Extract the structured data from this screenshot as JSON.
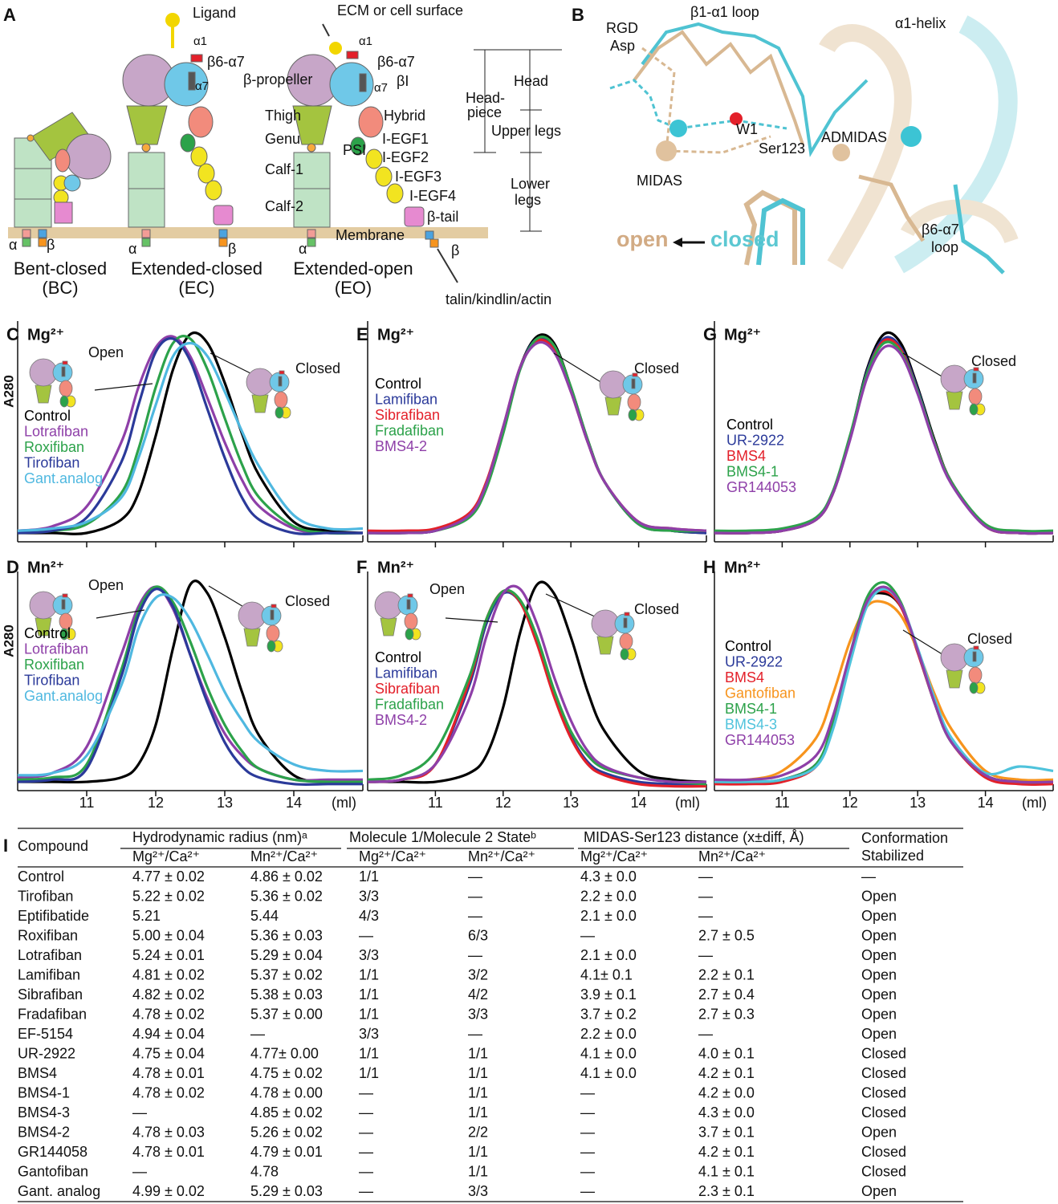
{
  "panel_a": {
    "label": "A",
    "texts": [
      "Ligand",
      "ECM or cell surface",
      "α1",
      "β6-α7",
      "α7",
      "β-propeller",
      "Thigh",
      "Genu",
      "Calf-1",
      "Calf-2",
      "α1",
      "β6-α7",
      "βI",
      "α7",
      "Hybrid",
      "PSI",
      "I-EGF1",
      "I-EGF2",
      "I-EGF3",
      "I-EGF4",
      "β-tail",
      "Membrane",
      "Head",
      "Head-",
      "piece",
      "Upper legs",
      "Lower",
      "legs",
      "α",
      "β",
      "α",
      "β",
      "α",
      "β",
      "Bent-closed",
      "(BC)",
      "Extended-closed",
      "(EC)",
      "Extended-open",
      "(EO)",
      "talin/kindlin/actin"
    ]
  },
  "panel_b": {
    "label": "B",
    "texts": [
      "RGD",
      "Asp",
      "β1-α1 loop",
      "α1-helix",
      "W1",
      "Ser123",
      "ADMIDAS",
      "MIDAS",
      "open",
      "closed",
      "β6-α7",
      "loop"
    ]
  },
  "chart_data": [
    {
      "type": "line",
      "panel": "C",
      "title": "Mg²⁺",
      "ylabel": "A280",
      "annotations": [
        "Open",
        "Closed"
      ],
      "x": [
        10,
        10.5,
        11,
        11.5,
        11.75,
        12,
        12.25,
        12.5,
        12.75,
        13,
        13.25,
        13.5,
        14,
        14.5,
        15
      ],
      "xlim": [
        10,
        15
      ],
      "ylim": [
        0,
        100
      ],
      "xticks": [
        11,
        12,
        13,
        14
      ],
      "series": [
        {
          "name": "Control",
          "color": "#000000",
          "values": [
            4,
            4,
            4,
            10,
            22,
            48,
            78,
            94,
            90,
            72,
            49,
            30,
            9,
            5,
            4
          ]
        },
        {
          "name": "Lotrafiban",
          "color": "#8e3fa8",
          "values": [
            5,
            7,
            16,
            45,
            70,
            88,
            93,
            84,
            65,
            45,
            28,
            16,
            6,
            4,
            4
          ]
        },
        {
          "name": "Roxifiban",
          "color": "#2ca24a",
          "values": [
            4,
            5,
            8,
            22,
            42,
            70,
            90,
            92,
            78,
            56,
            35,
            20,
            7,
            4,
            4
          ]
        },
        {
          "name": "Tirofiban",
          "color": "#2b3a9a",
          "values": [
            4,
            5,
            11,
            36,
            62,
            86,
            92,
            82,
            60,
            38,
            20,
            10,
            4,
            4,
            4
          ]
        },
        {
          "name": "Gant.analog",
          "color": "#4fb8e0",
          "values": [
            5,
            6,
            9,
            20,
            38,
            62,
            84,
            90,
            84,
            68,
            50,
            34,
            12,
            6,
            6
          ]
        }
      ]
    },
    {
      "type": "line",
      "panel": "D",
      "title": "Mn²⁺",
      "ylabel": "A280",
      "xlabel": "(ml)",
      "annotations": [
        "Open",
        "Closed"
      ],
      "x": [
        10,
        10.5,
        11,
        11.5,
        11.75,
        12,
        12.25,
        12.5,
        12.75,
        13,
        13.25,
        13.5,
        14,
        14.5,
        15
      ],
      "xlim": [
        10,
        15
      ],
      "ylim": [
        0,
        100
      ],
      "xticks": [
        11,
        12,
        13,
        14
      ],
      "series": [
        {
          "name": "Control",
          "color": "#000000",
          "values": [
            4,
            4,
            4,
            6,
            12,
            30,
            65,
            94,
            90,
            70,
            45,
            25,
            7,
            4,
            4
          ]
        },
        {
          "name": "Lotrafiban",
          "color": "#8e3fa8",
          "values": [
            6,
            8,
            20,
            62,
            84,
            93,
            83,
            62,
            42,
            26,
            16,
            10,
            5,
            5,
            5
          ]
        },
        {
          "name": "Roxifiban",
          "color": "#2ca24a",
          "values": [
            5,
            6,
            12,
            55,
            82,
            93,
            86,
            68,
            47,
            30,
            18,
            10,
            5,
            4,
            4
          ]
        },
        {
          "name": "Tirofiban",
          "color": "#2b3a9a",
          "values": [
            4,
            5,
            10,
            52,
            80,
            92,
            84,
            62,
            40,
            22,
            11,
            6,
            3,
            3,
            3
          ]
        },
        {
          "name": "Gant.analog",
          "color": "#4fb8e0",
          "values": [
            7,
            8,
            16,
            48,
            74,
            88,
            88,
            78,
            62,
            45,
            32,
            22,
            12,
            9,
            9
          ]
        }
      ]
    },
    {
      "type": "line",
      "panel": "E",
      "title": "Mg²⁺",
      "annotations": [
        "Closed"
      ],
      "x": [
        10,
        10.5,
        11,
        11.5,
        11.75,
        12,
        12.25,
        12.5,
        12.75,
        13,
        13.25,
        13.5,
        14,
        14.5,
        15
      ],
      "xlim": [
        10,
        15
      ],
      "ylim": [
        0,
        100
      ],
      "xticks": [
        11,
        12,
        13,
        14
      ],
      "series": [
        {
          "name": "Control",
          "color": "#000000",
          "values": [
            4,
            4,
            5,
            12,
            25,
            50,
            79,
            93,
            90,
            70,
            46,
            27,
            8,
            5,
            4
          ]
        },
        {
          "name": "Lamifiban",
          "color": "#2b3a9a",
          "values": [
            4,
            4,
            5,
            12,
            25,
            51,
            79,
            92,
            88,
            69,
            45,
            27,
            8,
            5,
            4
          ]
        },
        {
          "name": "Sibrafiban",
          "color": "#e3202a",
          "values": [
            5,
            5,
            6,
            13,
            27,
            52,
            79,
            91,
            87,
            68,
            45,
            27,
            9,
            6,
            5
          ]
        },
        {
          "name": "Fradafiban",
          "color": "#2ca24a",
          "values": [
            4,
            4,
            5,
            11,
            24,
            49,
            78,
            92,
            89,
            70,
            46,
            27,
            8,
            5,
            5
          ]
        },
        {
          "name": "BMS4-2",
          "color": "#8e3fa8",
          "values": [
            4,
            4,
            5,
            12,
            26,
            52,
            79,
            90,
            86,
            68,
            45,
            27,
            9,
            6,
            5
          ]
        }
      ]
    },
    {
      "type": "line",
      "panel": "F",
      "title": "Mn²⁺",
      "xlabel": "(ml)",
      "annotations": [
        "Open",
        "Closed"
      ],
      "x": [
        10,
        10.5,
        11,
        11.5,
        11.75,
        12,
        12.25,
        12.5,
        12.75,
        13,
        13.25,
        13.5,
        14,
        14.5,
        15
      ],
      "xlim": [
        10,
        15
      ],
      "ylim": [
        0,
        100
      ],
      "xticks": [
        11,
        12,
        13,
        14
      ],
      "series": [
        {
          "name": "Control",
          "color": "#000000",
          "values": [
            4,
            4,
            4,
            8,
            16,
            38,
            72,
            94,
            90,
            70,
            45,
            27,
            9,
            5,
            4
          ]
        },
        {
          "name": "Lamifiban",
          "color": "#2b3a9a",
          "values": [
            4,
            5,
            12,
            48,
            76,
            90,
            86,
            68,
            44,
            25,
            13,
            8,
            4,
            3,
            3
          ]
        },
        {
          "name": "Sibrafiban",
          "color": "#e3202a",
          "values": [
            4,
            5,
            12,
            50,
            78,
            91,
            86,
            67,
            43,
            24,
            12,
            7,
            3,
            2,
            2
          ]
        },
        {
          "name": "Fradafiban",
          "color": "#2ca24a",
          "values": [
            5,
            7,
            18,
            52,
            78,
            91,
            87,
            70,
            46,
            27,
            16,
            10,
            6,
            4,
            3
          ]
        },
        {
          "name": "BMS4-2",
          "color": "#8e3fa8",
          "values": [
            4,
            5,
            12,
            42,
            70,
            90,
            92,
            76,
            52,
            32,
            18,
            11,
            6,
            4,
            4
          ]
        }
      ]
    },
    {
      "type": "line",
      "panel": "G",
      "title": "Mg²⁺",
      "annotations": [
        "Closed"
      ],
      "x": [
        10,
        10.5,
        11,
        11.5,
        11.75,
        12,
        12.25,
        12.5,
        12.75,
        13,
        13.25,
        13.5,
        14,
        14.5,
        15
      ],
      "xlim": [
        10,
        15
      ],
      "ylim": [
        0,
        100
      ],
      "xticks": [
        11,
        12,
        13,
        14
      ],
      "series": [
        {
          "name": "Control",
          "color": "#000000",
          "values": [
            4,
            4,
            5,
            10,
            22,
            47,
            78,
            94,
            90,
            70,
            46,
            27,
            7,
            4,
            4
          ]
        },
        {
          "name": "UR-2922",
          "color": "#2b3a9a",
          "values": [
            4,
            4,
            5,
            10,
            22,
            47,
            77,
            92,
            88,
            69,
            45,
            27,
            7,
            4,
            4
          ]
        },
        {
          "name": "BMS4",
          "color": "#e3202a",
          "values": [
            4,
            4,
            5,
            10,
            22,
            47,
            76,
            91,
            87,
            68,
            45,
            27,
            7,
            4,
            4
          ]
        },
        {
          "name": "BMS4-1",
          "color": "#2ca24a",
          "values": [
            5,
            5,
            6,
            11,
            23,
            48,
            76,
            90,
            86,
            68,
            45,
            27,
            8,
            5,
            5
          ]
        },
        {
          "name": "GR144053",
          "color": "#8e3fa8",
          "values": [
            4,
            4,
            5,
            10,
            22,
            46,
            74,
            88,
            85,
            67,
            44,
            26,
            7,
            4,
            4
          ]
        }
      ]
    },
    {
      "type": "line",
      "panel": "H",
      "title": "Mn²⁺",
      "xlabel": "(ml)",
      "annotations": [
        "Closed"
      ],
      "x": [
        10,
        10.5,
        11,
        11.5,
        11.75,
        12,
        12.25,
        12.5,
        12.75,
        13,
        13.25,
        13.5,
        14,
        14.5,
        15
      ],
      "xlim": [
        10,
        15
      ],
      "ylim": [
        0,
        100
      ],
      "xticks": [
        11,
        12,
        13,
        14
      ],
      "series": [
        {
          "name": "Control",
          "color": "#000000",
          "values": [
            4,
            4,
            5,
            12,
            30,
            60,
            86,
            90,
            84,
            64,
            40,
            22,
            7,
            4,
            4
          ]
        },
        {
          "name": "UR-2922",
          "color": "#2b3a9a",
          "values": [
            4,
            4,
            5,
            12,
            30,
            60,
            86,
            92,
            85,
            64,
            40,
            22,
            7,
            4,
            4
          ]
        },
        {
          "name": "BMS4",
          "color": "#e3202a",
          "values": [
            3,
            3,
            4,
            11,
            29,
            60,
            86,
            91,
            84,
            63,
            40,
            22,
            6,
            3,
            3
          ]
        },
        {
          "name": "Gantofiban",
          "color": "#f7941d",
          "values": [
            5,
            5,
            9,
            24,
            44,
            68,
            84,
            86,
            80,
            64,
            44,
            28,
            9,
            5,
            5
          ]
        },
        {
          "name": "BMS4-1",
          "color": "#2ca24a",
          "values": [
            4,
            4,
            5,
            12,
            31,
            62,
            88,
            95,
            86,
            64,
            40,
            22,
            7,
            4,
            4
          ]
        },
        {
          "name": "BMS4-3",
          "color": "#4fc3dc",
          "values": [
            4,
            4,
            5,
            11,
            28,
            58,
            84,
            92,
            85,
            65,
            42,
            24,
            8,
            11,
            9
          ]
        },
        {
          "name": "GR144053",
          "color": "#8e3fa8",
          "values": [
            5,
            5,
            7,
            16,
            34,
            62,
            86,
            93,
            85,
            64,
            40,
            22,
            7,
            4,
            4
          ]
        }
      ]
    }
  ],
  "table": {
    "label": "I",
    "compound": "Compound",
    "groups": [
      "Hydrodynamic radius (nm)ᵃ",
      "Molecule 1/Molecule 2 Stateᵇ",
      "MIDAS-Ser123 distance (x±diff, Å)"
    ],
    "subheaders": [
      "Mg²⁺/Ca²⁺",
      "Mn²⁺/Ca²⁺",
      "Mg²⁺/Ca²⁺",
      "Mn²⁺/Ca²⁺",
      "Mg²⁺/Ca²⁺",
      "Mn²⁺/Ca²⁺"
    ],
    "last": [
      "Conformation",
      "Stabilized"
    ],
    "rows": [
      [
        "Control",
        "4.77 ± 0.02",
        "4.86 ± 0.02",
        "1/1",
        "—",
        "4.3 ± 0.0",
        "—",
        "—"
      ],
      [
        "Tirofiban",
        "5.22 ± 0.02",
        "5.36 ± 0.02",
        "3/3",
        "—",
        "2.2 ± 0.0",
        "—",
        "Open"
      ],
      [
        "Eptifibatide",
        "5.21",
        "5.44",
        "4/3",
        "—",
        "2.1 ± 0.0",
        "—",
        "Open"
      ],
      [
        "Roxifiban",
        "5.00 ± 0.04",
        "5.36 ± 0.03",
        "—",
        "6/3",
        "—",
        "2.7 ± 0.5",
        "Open"
      ],
      [
        "Lotrafiban",
        "5.24 ± 0.01",
        "5.29 ± 0.04",
        "3/3",
        "—",
        "2.1 ± 0.0",
        "—",
        "Open"
      ],
      [
        "Lamifiban",
        "4.81 ± 0.02",
        "5.37 ± 0.02",
        "1/1",
        "3/2",
        "4.1± 0.1",
        "2.2 ± 0.1",
        "Open"
      ],
      [
        "Sibrafiban",
        "4.82 ± 0.02",
        "5.38 ± 0.03",
        "1/1",
        "4/2",
        "3.9 ± 0.1",
        "2.7 ± 0.4",
        "Open"
      ],
      [
        "Fradafiban",
        "4.78 ± 0.02",
        "5.37 ± 0.00",
        "1/1",
        "3/3",
        "3.7 ± 0.2",
        "2.7 ± 0.3",
        "Open"
      ],
      [
        "EF-5154",
        "4.94 ± 0.04",
        "—",
        "3/3",
        "—",
        "2.2 ± 0.0",
        "—",
        "Open"
      ],
      [
        "UR-2922",
        "4.75 ± 0.04",
        "4.77± 0.00",
        "1/1",
        "1/1",
        "4.1 ± 0.0",
        "4.0 ± 0.1",
        "Closed"
      ],
      [
        "BMS4",
        "4.78 ± 0.01",
        "4.75 ± 0.02",
        "1/1",
        "1/1",
        "4.1 ± 0.0",
        "4.2 ± 0.1",
        "Closed"
      ],
      [
        "BMS4-1",
        "4.78 ± 0.02",
        "4.78 ± 0.00",
        "—",
        "1/1",
        "—",
        "4.2 ± 0.0",
        "Closed"
      ],
      [
        "BMS4-3",
        "—",
        "4.85 ± 0.02",
        "—",
        "1/1",
        "—",
        "4.3 ± 0.0",
        "Closed"
      ],
      [
        "BMS4-2",
        "4.78 ± 0.03",
        "5.26 ± 0.02",
        "—",
        "2/2",
        "—",
        "3.7 ± 0.1",
        "Open"
      ],
      [
        "GR144058",
        "4.78 ± 0.01",
        "4.79 ± 0.01",
        "—",
        "1/1",
        "—",
        "4.2 ± 0.1",
        "Closed"
      ],
      [
        "Gantofiban",
        "—",
        "4.78",
        "—",
        "1/1",
        "—",
        "4.1 ± 0.1",
        "Closed"
      ],
      [
        "Gant. analog",
        "4.99 ± 0.02",
        "5.29 ± 0.03",
        "—",
        "3/3",
        "—",
        "2.3 ± 0.1",
        "Open"
      ]
    ]
  }
}
